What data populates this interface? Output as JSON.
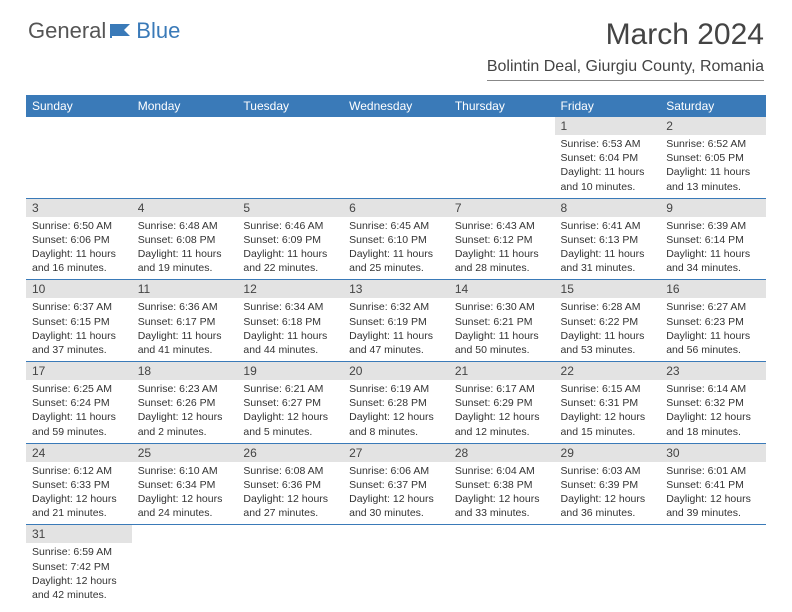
{
  "logo": {
    "general": "General",
    "blue": "Blue"
  },
  "title": "March 2024",
  "location": "Bolintin Deal, Giurgiu County, Romania",
  "colors": {
    "header_bg": "#3a7ab8",
    "header_text": "#ffffff",
    "daynum_bg": "#e3e3e3",
    "row_border": "#3a7ab8"
  },
  "dow": [
    "Sunday",
    "Monday",
    "Tuesday",
    "Wednesday",
    "Thursday",
    "Friday",
    "Saturday"
  ],
  "weeks": [
    [
      {
        "n": "",
        "sr": "",
        "ss": "",
        "dl": ""
      },
      {
        "n": "",
        "sr": "",
        "ss": "",
        "dl": ""
      },
      {
        "n": "",
        "sr": "",
        "ss": "",
        "dl": ""
      },
      {
        "n": "",
        "sr": "",
        "ss": "",
        "dl": ""
      },
      {
        "n": "",
        "sr": "",
        "ss": "",
        "dl": ""
      },
      {
        "n": "1",
        "sr": "Sunrise: 6:53 AM",
        "ss": "Sunset: 6:04 PM",
        "dl": "Daylight: 11 hours and 10 minutes."
      },
      {
        "n": "2",
        "sr": "Sunrise: 6:52 AM",
        "ss": "Sunset: 6:05 PM",
        "dl": "Daylight: 11 hours and 13 minutes."
      }
    ],
    [
      {
        "n": "3",
        "sr": "Sunrise: 6:50 AM",
        "ss": "Sunset: 6:06 PM",
        "dl": "Daylight: 11 hours and 16 minutes."
      },
      {
        "n": "4",
        "sr": "Sunrise: 6:48 AM",
        "ss": "Sunset: 6:08 PM",
        "dl": "Daylight: 11 hours and 19 minutes."
      },
      {
        "n": "5",
        "sr": "Sunrise: 6:46 AM",
        "ss": "Sunset: 6:09 PM",
        "dl": "Daylight: 11 hours and 22 minutes."
      },
      {
        "n": "6",
        "sr": "Sunrise: 6:45 AM",
        "ss": "Sunset: 6:10 PM",
        "dl": "Daylight: 11 hours and 25 minutes."
      },
      {
        "n": "7",
        "sr": "Sunrise: 6:43 AM",
        "ss": "Sunset: 6:12 PM",
        "dl": "Daylight: 11 hours and 28 minutes."
      },
      {
        "n": "8",
        "sr": "Sunrise: 6:41 AM",
        "ss": "Sunset: 6:13 PM",
        "dl": "Daylight: 11 hours and 31 minutes."
      },
      {
        "n": "9",
        "sr": "Sunrise: 6:39 AM",
        "ss": "Sunset: 6:14 PM",
        "dl": "Daylight: 11 hours and 34 minutes."
      }
    ],
    [
      {
        "n": "10",
        "sr": "Sunrise: 6:37 AM",
        "ss": "Sunset: 6:15 PM",
        "dl": "Daylight: 11 hours and 37 minutes."
      },
      {
        "n": "11",
        "sr": "Sunrise: 6:36 AM",
        "ss": "Sunset: 6:17 PM",
        "dl": "Daylight: 11 hours and 41 minutes."
      },
      {
        "n": "12",
        "sr": "Sunrise: 6:34 AM",
        "ss": "Sunset: 6:18 PM",
        "dl": "Daylight: 11 hours and 44 minutes."
      },
      {
        "n": "13",
        "sr": "Sunrise: 6:32 AM",
        "ss": "Sunset: 6:19 PM",
        "dl": "Daylight: 11 hours and 47 minutes."
      },
      {
        "n": "14",
        "sr": "Sunrise: 6:30 AM",
        "ss": "Sunset: 6:21 PM",
        "dl": "Daylight: 11 hours and 50 minutes."
      },
      {
        "n": "15",
        "sr": "Sunrise: 6:28 AM",
        "ss": "Sunset: 6:22 PM",
        "dl": "Daylight: 11 hours and 53 minutes."
      },
      {
        "n": "16",
        "sr": "Sunrise: 6:27 AM",
        "ss": "Sunset: 6:23 PM",
        "dl": "Daylight: 11 hours and 56 minutes."
      }
    ],
    [
      {
        "n": "17",
        "sr": "Sunrise: 6:25 AM",
        "ss": "Sunset: 6:24 PM",
        "dl": "Daylight: 11 hours and 59 minutes."
      },
      {
        "n": "18",
        "sr": "Sunrise: 6:23 AM",
        "ss": "Sunset: 6:26 PM",
        "dl": "Daylight: 12 hours and 2 minutes."
      },
      {
        "n": "19",
        "sr": "Sunrise: 6:21 AM",
        "ss": "Sunset: 6:27 PM",
        "dl": "Daylight: 12 hours and 5 minutes."
      },
      {
        "n": "20",
        "sr": "Sunrise: 6:19 AM",
        "ss": "Sunset: 6:28 PM",
        "dl": "Daylight: 12 hours and 8 minutes."
      },
      {
        "n": "21",
        "sr": "Sunrise: 6:17 AM",
        "ss": "Sunset: 6:29 PM",
        "dl": "Daylight: 12 hours and 12 minutes."
      },
      {
        "n": "22",
        "sr": "Sunrise: 6:15 AM",
        "ss": "Sunset: 6:31 PM",
        "dl": "Daylight: 12 hours and 15 minutes."
      },
      {
        "n": "23",
        "sr": "Sunrise: 6:14 AM",
        "ss": "Sunset: 6:32 PM",
        "dl": "Daylight: 12 hours and 18 minutes."
      }
    ],
    [
      {
        "n": "24",
        "sr": "Sunrise: 6:12 AM",
        "ss": "Sunset: 6:33 PM",
        "dl": "Daylight: 12 hours and 21 minutes."
      },
      {
        "n": "25",
        "sr": "Sunrise: 6:10 AM",
        "ss": "Sunset: 6:34 PM",
        "dl": "Daylight: 12 hours and 24 minutes."
      },
      {
        "n": "26",
        "sr": "Sunrise: 6:08 AM",
        "ss": "Sunset: 6:36 PM",
        "dl": "Daylight: 12 hours and 27 minutes."
      },
      {
        "n": "27",
        "sr": "Sunrise: 6:06 AM",
        "ss": "Sunset: 6:37 PM",
        "dl": "Daylight: 12 hours and 30 minutes."
      },
      {
        "n": "28",
        "sr": "Sunrise: 6:04 AM",
        "ss": "Sunset: 6:38 PM",
        "dl": "Daylight: 12 hours and 33 minutes."
      },
      {
        "n": "29",
        "sr": "Sunrise: 6:03 AM",
        "ss": "Sunset: 6:39 PM",
        "dl": "Daylight: 12 hours and 36 minutes."
      },
      {
        "n": "30",
        "sr": "Sunrise: 6:01 AM",
        "ss": "Sunset: 6:41 PM",
        "dl": "Daylight: 12 hours and 39 minutes."
      }
    ],
    [
      {
        "n": "31",
        "sr": "Sunrise: 6:59 AM",
        "ss": "Sunset: 7:42 PM",
        "dl": "Daylight: 12 hours and 42 minutes."
      },
      {
        "n": "",
        "sr": "",
        "ss": "",
        "dl": ""
      },
      {
        "n": "",
        "sr": "",
        "ss": "",
        "dl": ""
      },
      {
        "n": "",
        "sr": "",
        "ss": "",
        "dl": ""
      },
      {
        "n": "",
        "sr": "",
        "ss": "",
        "dl": ""
      },
      {
        "n": "",
        "sr": "",
        "ss": "",
        "dl": ""
      },
      {
        "n": "",
        "sr": "",
        "ss": "",
        "dl": ""
      }
    ]
  ]
}
